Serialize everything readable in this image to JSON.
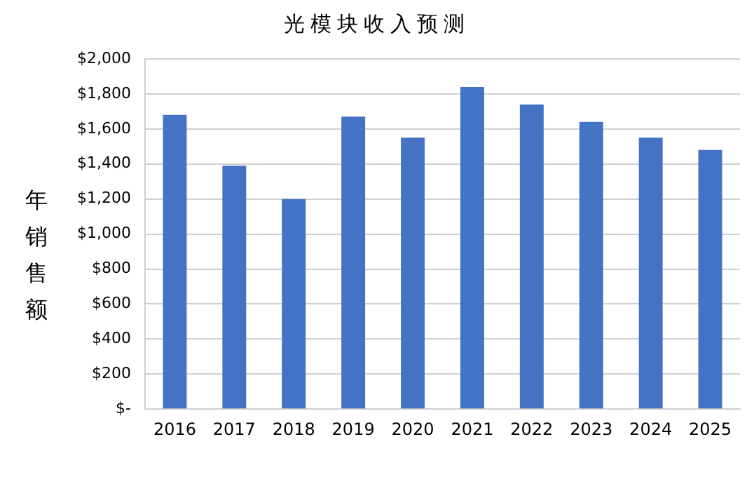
{
  "chart_data": {
    "type": "bar",
    "title": "光模块收入预测",
    "ylabel": "年销售额",
    "categories": [
      "2016",
      "2017",
      "2018",
      "2019",
      "2020",
      "2021",
      "2022",
      "2023",
      "2024",
      "2025"
    ],
    "values": [
      1680,
      1390,
      1200,
      1670,
      1550,
      1840,
      1740,
      1640,
      1550,
      1480
    ],
    "color": "#4472c4",
    "ylim": [
      0,
      2000
    ],
    "yticks": [
      {
        "value": 0,
        "label": "$-"
      },
      {
        "value": 200,
        "label": "$200"
      },
      {
        "value": 400,
        "label": "$400"
      },
      {
        "value": 600,
        "label": "$600"
      },
      {
        "value": 800,
        "label": "$800"
      },
      {
        "value": 1000,
        "label": "$1,000"
      },
      {
        "value": 1200,
        "label": "$1,200"
      },
      {
        "value": 1400,
        "label": "$1,400"
      },
      {
        "value": 1600,
        "label": "$1,600"
      },
      {
        "value": 1800,
        "label": "$1,800"
      },
      {
        "value": 2000,
        "label": "$2,000"
      }
    ],
    "grid": "y"
  }
}
